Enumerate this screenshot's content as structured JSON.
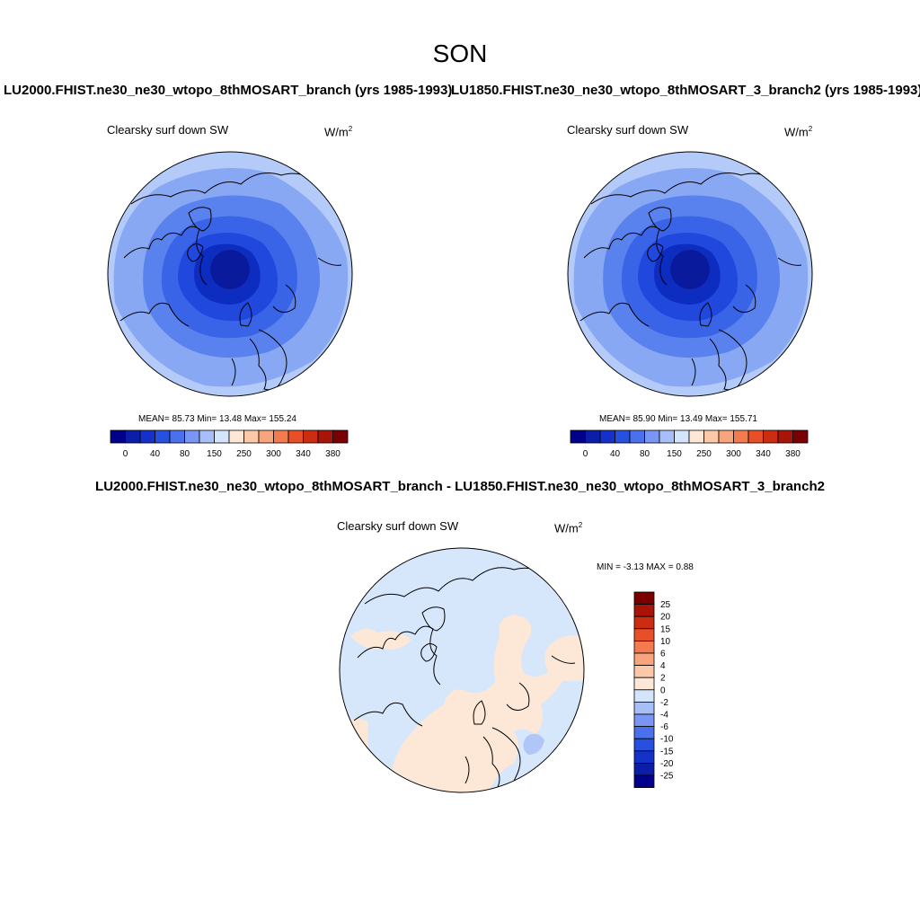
{
  "figure": {
    "title": "SON",
    "panels": [
      {
        "id": "lu2000",
        "run_title": "LU2000.FHIST.ne30_ne30_wtopo_8thMOSART_branch (yrs 1985-1993)",
        "variable": "Clearsky surf down SW",
        "units_base": "W/m",
        "units_exp": "2",
        "stats_text": "MEAN=  85.73  Min=  13.48  Max= 155.24"
      },
      {
        "id": "lu1850",
        "run_title": "LU1850.FHIST.ne30_ne30_wtopo_8thMOSART_3_branch2 (yrs 1985-1993)",
        "variable": "Clearsky surf down SW",
        "units_base": "W/m",
        "units_exp": "2",
        "stats_text": "MEAN=  85.90  Min=  13.49  Max= 155.71"
      }
    ],
    "difference": {
      "title": "LU2000.FHIST.ne30_ne30_wtopo_8thMOSART_branch - LU1850.FHIST.ne30_ne30_wtopo_8thMOSART_3_branch2",
      "variable": "Clearsky surf down SW",
      "units_base": "W/m",
      "units_exp": "2",
      "minmax_text": "MIN =  -3.13 MAX =   0.88"
    }
  },
  "colorbar_top": {
    "colors": [
      "#00008b",
      "#0a1ea8",
      "#1432c8",
      "#2850e0",
      "#4a70ec",
      "#7896f2",
      "#a6bff8",
      "#d4e4fb",
      "#fde8d8",
      "#fcc8aa",
      "#f8a47c",
      "#f47a50",
      "#e84e28",
      "#cc2c10",
      "#a81408",
      "#7a0000"
    ],
    "tick_labels": [
      "0",
      "40",
      "80",
      "150",
      "250",
      "300",
      "340",
      "380"
    ]
  },
  "colorbar_diff": {
    "colors_top_to_bottom": [
      "#7a0000",
      "#a81408",
      "#cc2c10",
      "#e84e28",
      "#f47a50",
      "#f8a47c",
      "#fcc8aa",
      "#fde8d8",
      "#d4e4fb",
      "#a6bff8",
      "#7896f2",
      "#4a70ec",
      "#2850e0",
      "#1432c8",
      "#0a1ea8",
      "#00008b"
    ],
    "tick_labels": [
      "25",
      "20",
      "15",
      "10",
      "6",
      "4",
      "2",
      "0",
      "-2",
      "-4",
      "-6",
      "-10",
      "-15",
      "-20",
      "-25"
    ]
  },
  "map_colors": {
    "ring1": "#b4caf8",
    "ring2": "#89a8f4",
    "ring3": "#5a82ee",
    "ring4": "#3a64e8",
    "ring5": "#2048dc",
    "ring6": "#0d2cc0",
    "pole": "#0a1a9c",
    "diff_neg": "#d6e6fb",
    "diff_pos": "#fde8d8",
    "diff_neg2": "#b0c6f6",
    "coast": "#000000"
  }
}
